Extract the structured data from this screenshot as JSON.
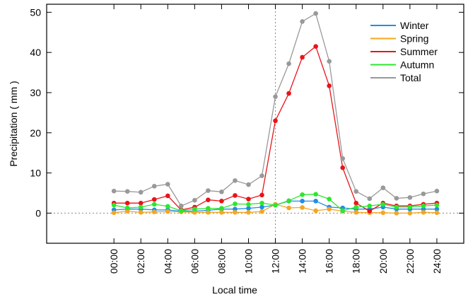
{
  "chart_data": {
    "type": "line",
    "title": "",
    "xlabel": "Local time",
    "ylabel": "Precipitation ( mm )",
    "xlim": [
      -5,
      26
    ],
    "ylim": [
      -7.5,
      52
    ],
    "x": [
      0,
      1,
      2,
      3,
      4,
      5,
      6,
      7,
      8,
      9,
      10,
      11,
      12,
      13,
      14,
      15,
      16,
      17,
      18,
      19,
      20,
      21,
      22,
      23,
      24
    ],
    "x_ticks": [
      0,
      2,
      4,
      6,
      8,
      10,
      12,
      14,
      16,
      18,
      20,
      22,
      24
    ],
    "x_tick_labels": [
      "00:00",
      "02:00",
      "04:00",
      "06:00",
      "08:00",
      "10:00",
      "12:00",
      "14:00",
      "16:00",
      "18:00",
      "20:00",
      "22:00",
      "24:00"
    ],
    "y_ticks": [
      0,
      10,
      20,
      30,
      40,
      50
    ],
    "y_tick_labels": [
      "0",
      "10",
      "20",
      "30",
      "40",
      "50"
    ],
    "reference_lines": {
      "x": 12,
      "y": 0,
      "style": "dotted"
    },
    "legend_position": "top-right",
    "grid": false,
    "series": [
      {
        "name": "Winter",
        "color": "#1f8ee6",
        "values": [
          0.8,
          1.0,
          1.0,
          0.8,
          0.8,
          0.5,
          0.5,
          0.7,
          1.0,
          1.0,
          1.2,
          1.5,
          2.0,
          3.0,
          3.0,
          3.0,
          1.5,
          1.3,
          1.0,
          1.0,
          1.5,
          1.0,
          1.0,
          1.0,
          1.0
        ]
      },
      {
        "name": "Spring",
        "color": "#f5a623",
        "values": [
          0.1,
          0.5,
          0.2,
          0.3,
          0.4,
          0.3,
          0.2,
          0.2,
          0.2,
          0.2,
          0.2,
          0.4,
          2.2,
          1.3,
          1.4,
          0.6,
          1.0,
          0.5,
          0.2,
          0.1,
          0.1,
          0.0,
          0.0,
          0.2,
          0.1
        ]
      },
      {
        "name": "Summer",
        "color": "#e8141a",
        "values": [
          2.5,
          2.5,
          2.5,
          3.4,
          4.3,
          0.8,
          1.5,
          3.3,
          3.0,
          4.4,
          3.5,
          4.5,
          23.0,
          29.8,
          38.8,
          41.5,
          31.7,
          11.3,
          2.5,
          0.5,
          2.5,
          1.8,
          1.8,
          2.2,
          2.5
        ]
      },
      {
        "name": "Autumn",
        "color": "#2ee62e",
        "values": [
          2.0,
          1.3,
          1.5,
          2.2,
          1.7,
          0.6,
          1.0,
          1.2,
          1.2,
          2.3,
          2.2,
          2.5,
          2.0,
          3.1,
          4.6,
          4.7,
          3.5,
          0.6,
          1.5,
          1.8,
          2.2,
          1.5,
          1.5,
          1.8,
          2.0
        ]
      },
      {
        "name": "Total",
        "color": "#999999",
        "values": [
          5.5,
          5.4,
          5.2,
          6.7,
          7.2,
          1.8,
          3.2,
          5.6,
          5.3,
          8.1,
          7.1,
          9.3,
          29.0,
          37.2,
          47.7,
          49.7,
          37.8,
          13.6,
          5.4,
          3.6,
          6.3,
          3.7,
          3.9,
          4.8,
          5.5
        ]
      }
    ]
  }
}
